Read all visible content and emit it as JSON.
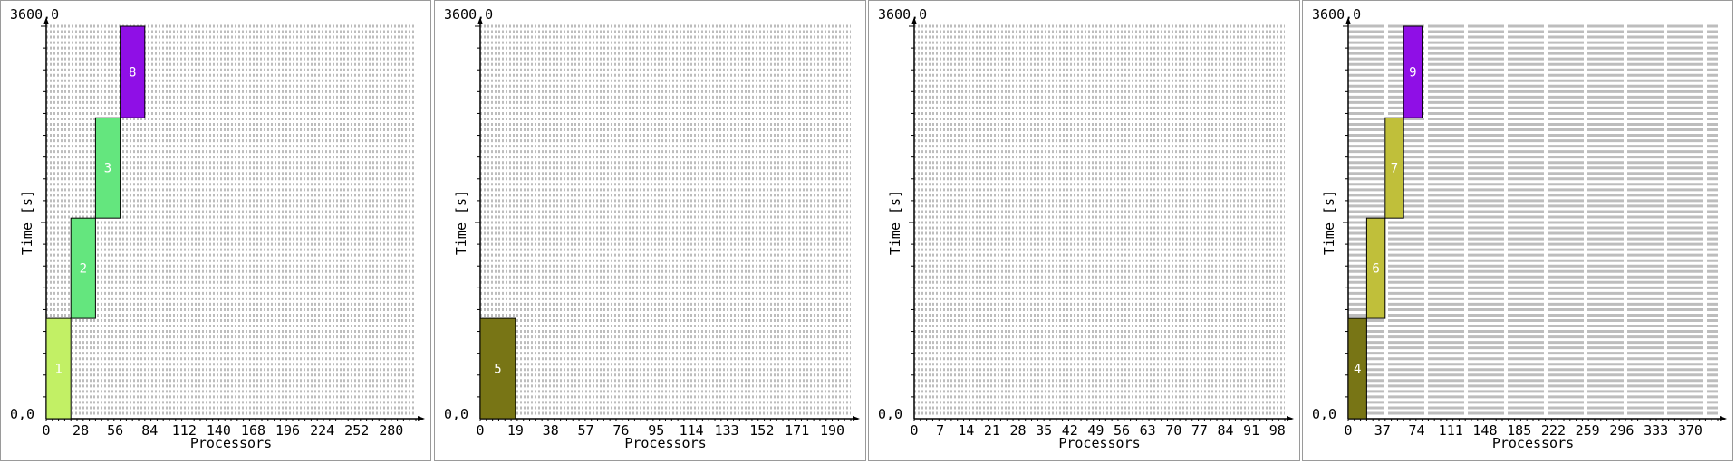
{
  "chart_data": [
    {
      "type": "bar",
      "ylabel": "Time [s]",
      "xlabel": "Processors",
      "y_top_label": "3600,0",
      "y_origin_label": "0,0",
      "ylim": [
        0,
        3600
      ],
      "xlim": [
        0,
        300
      ],
      "x_ticks": [
        0,
        28,
        56,
        84,
        112,
        140,
        168,
        196,
        224,
        252,
        280
      ],
      "grid_rows": 72,
      "grid_cols": 300,
      "jobs": [
        {
          "label": "1",
          "x0": 0,
          "x1": 20,
          "y0": 0,
          "y1": 920,
          "color": "#c2f065"
        },
        {
          "label": "2",
          "x0": 20,
          "x1": 40,
          "y0": 920,
          "y1": 1840,
          "color": "#64e67e"
        },
        {
          "label": "3",
          "x0": 40,
          "x1": 60,
          "y0": 1840,
          "y1": 2760,
          "color": "#64e67e"
        },
        {
          "label": "8",
          "x0": 60,
          "x1": 80,
          "y0": 2760,
          "y1": 3600,
          "color": "#8f0fe6"
        }
      ]
    },
    {
      "type": "bar",
      "ylabel": "Time [s]",
      "xlabel": "Processors",
      "y_top_label": "3600,0",
      "y_origin_label": "0,0",
      "ylim": [
        0,
        3600
      ],
      "xlim": [
        0,
        200
      ],
      "x_ticks": [
        0,
        19,
        38,
        57,
        76,
        95,
        114,
        133,
        152,
        171,
        190
      ],
      "grid_rows": 72,
      "grid_cols": 100,
      "jobs": [
        {
          "label": "5",
          "x0": 0,
          "x1": 19,
          "y0": 0,
          "y1": 920,
          "color": "#787515"
        }
      ]
    },
    {
      "type": "bar",
      "ylabel": "Time [s]",
      "xlabel": "Processors",
      "y_top_label": "3600,0",
      "y_origin_label": "0,0",
      "ylim": [
        0,
        3600
      ],
      "xlim": [
        0,
        100
      ],
      "x_ticks": [
        0,
        7,
        14,
        21,
        28,
        35,
        42,
        49,
        56,
        63,
        70,
        77,
        84,
        91,
        98
      ],
      "grid_rows": 72,
      "grid_cols": 100,
      "jobs": []
    },
    {
      "type": "bar",
      "ylabel": "Time [s]",
      "xlabel": "Processors",
      "y_top_label": "3600,0",
      "y_origin_label": "0,0",
      "ylim": [
        0,
        3600
      ],
      "xlim": [
        0,
        400
      ],
      "x_ticks": [
        0,
        37,
        74,
        111,
        148,
        185,
        222,
        259,
        296,
        333,
        370
      ],
      "grid_rows": 72,
      "grid_cols": 10,
      "jobs": [
        {
          "label": "4",
          "x0": 0,
          "x1": 20,
          "y0": 0,
          "y1": 920,
          "color": "#787515"
        },
        {
          "label": "6",
          "x0": 20,
          "x1": 40,
          "y0": 920,
          "y1": 1840,
          "color": "#c0bf3a"
        },
        {
          "label": "7",
          "x0": 40,
          "x1": 60,
          "y0": 1840,
          "y1": 2760,
          "color": "#c0bf3a"
        },
        {
          "label": "9",
          "x0": 60,
          "x1": 80,
          "y0": 2760,
          "y1": 3600,
          "color": "#8f0fe6"
        }
      ]
    }
  ]
}
